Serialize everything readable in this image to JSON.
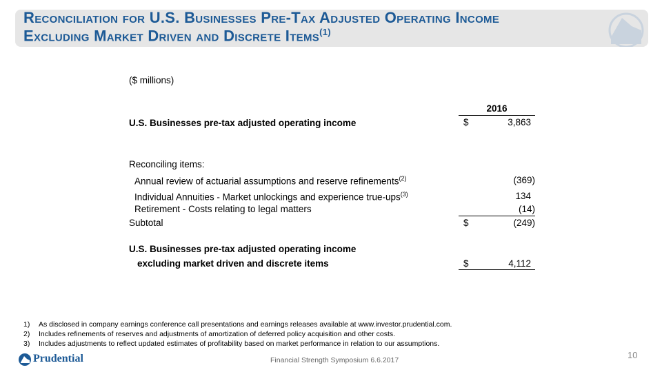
{
  "header": {
    "title_line1": "Reconciliation for U.S. Businesses Pre-Tax Adjusted Operating Income",
    "title_line2": "Excluding Market Driven and Discrete Items",
    "title_note": "(1)"
  },
  "table": {
    "units": "($ millions)",
    "column": "2016",
    "rows": [
      {
        "label": "U.S. Businesses pre-tax adjusted operating income",
        "currency": "$",
        "value": "3,863"
      },
      {
        "label": "Reconciling items:"
      },
      {
        "label": "Annual review of actuarial assumptions and reserve refinements",
        "note": "(2)",
        "value": "(369)"
      },
      {
        "label": "Individual Annuities - Market unlockings and experience true-ups",
        "note": "(3)",
        "value": "134"
      },
      {
        "label": "Retirement - Costs relating to legal matters",
        "value": "(14)"
      },
      {
        "label": "Subtotal",
        "currency": "$",
        "value": "(249)"
      },
      {
        "label": "U.S. Businesses pre-tax adjusted operating income",
        "label_line2": "excluding market driven and discrete items",
        "currency": "$",
        "value": "4,112"
      }
    ]
  },
  "footnotes": [
    {
      "marker": "1)",
      "text": "As disclosed in company earnings conference call presentations and earnings releases available at www.investor.prudential.com."
    },
    {
      "marker": "2)",
      "text": "Includes refinements of reserves and adjustments of amortization of deferred policy acquisition and other costs."
    },
    {
      "marker": "3)",
      "text": "Includes adjustments to reflect updated estimates of profitability based on market performance in relation to our assumptions."
    }
  ],
  "footer": {
    "logo": "Prudential",
    "event": "Financial Strength Symposium 6.6.2017",
    "page": "10"
  }
}
